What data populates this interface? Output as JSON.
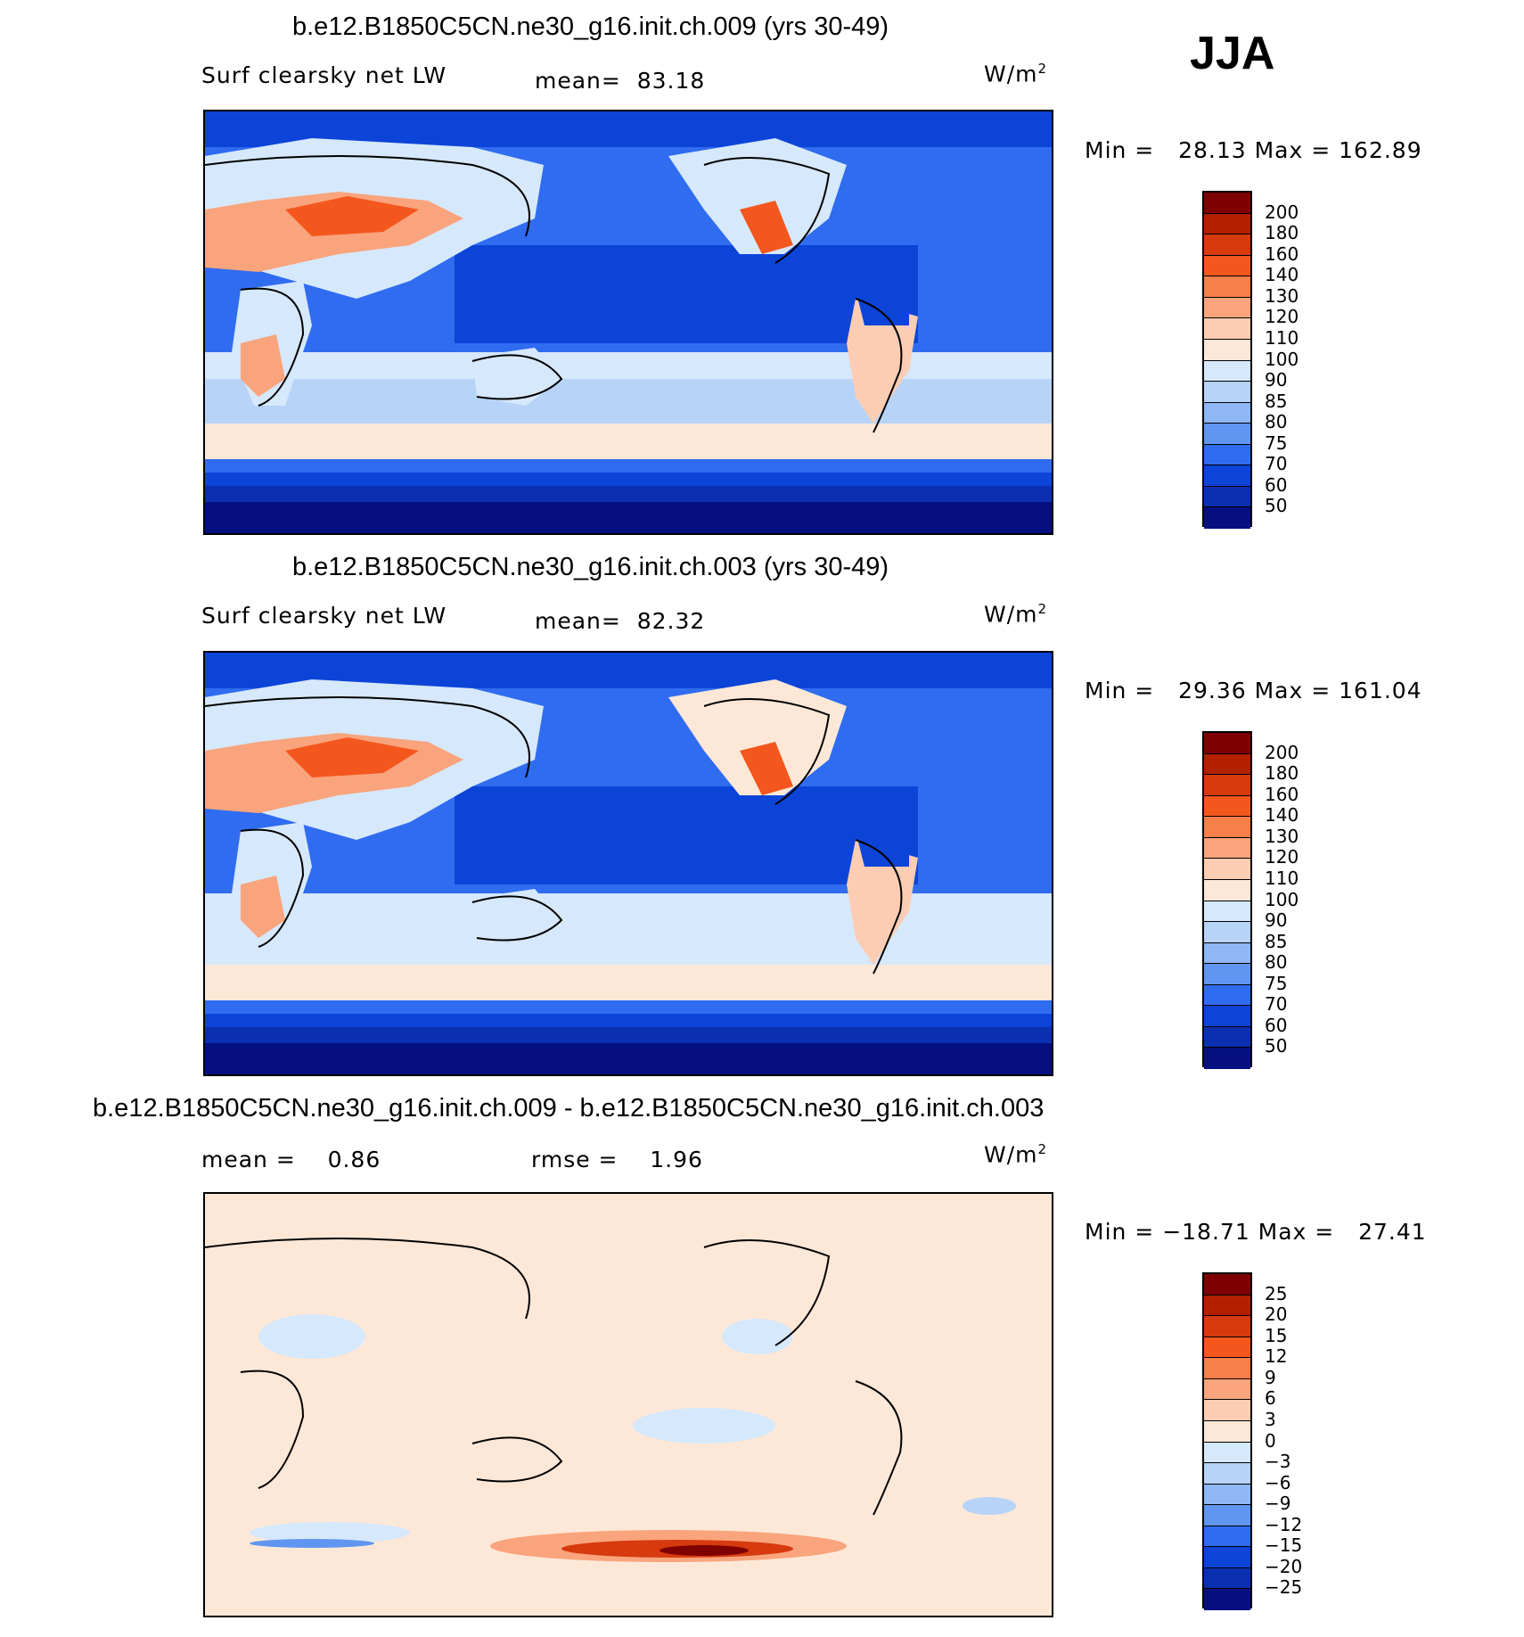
{
  "season": "JJA",
  "panels": [
    {
      "title": "b.e12.B1850C5CN.ne30_g16.init.ch.009 (yrs 30-49)",
      "left_label": "Surf clearsky net LW",
      "mid_label": "mean=  83.18",
      "units": "W/m",
      "units_sup": "2",
      "minmax": "Min =   28.13 Max = 162.89",
      "palette": "abs"
    },
    {
      "title": "b.e12.B1850C5CN.ne30_g16.init.ch.003 (yrs 30-49)",
      "left_label": "Surf clearsky net LW",
      "mid_label": "mean=  82.32",
      "units": "W/m",
      "units_sup": "2",
      "minmax": "Min =   29.36 Max = 161.04",
      "palette": "abs"
    },
    {
      "title": "b.e12.B1850C5CN.ne30_g16.init.ch.009 - b.e12.B1850C5CN.ne30_g16.init.ch.003",
      "left_label": "mean =    0.86",
      "mid_label": "rmse =    1.96",
      "units": "W/m",
      "units_sup": "2",
      "minmax": "Min = −18.71 Max =   27.41",
      "palette": "diff"
    }
  ],
  "colorbars": {
    "abs": {
      "levels": [
        "200",
        "180",
        "160",
        "140",
        "130",
        "120",
        "110",
        "100",
        "90",
        "85",
        "80",
        "75",
        "70",
        "60",
        "50"
      ],
      "colors": [
        "#7f0000",
        "#b22000",
        "#d63a0e",
        "#f4571e",
        "#f77f49",
        "#f9a47c",
        "#fccdb3",
        "#fde8d8",
        "#d6e8fb",
        "#b7d3f8",
        "#8fb6f5",
        "#6095f2",
        "#2f6cf0",
        "#0c44d8",
        "#0a2fb0",
        "#060f80"
      ]
    },
    "diff": {
      "levels": [
        "25",
        "20",
        "15",
        "12",
        "9",
        "6",
        "3",
        "0",
        "−3",
        "−6",
        "−9",
        "−12",
        "−15",
        "−20",
        "−25"
      ],
      "colors": [
        "#7f0000",
        "#b22000",
        "#d63a0e",
        "#f4571e",
        "#f77f49",
        "#f9a47c",
        "#fccdb3",
        "#fde8d8",
        "#d6e8fb",
        "#b7d3f8",
        "#8fb6f5",
        "#6095f2",
        "#2f6cf0",
        "#0c44d8",
        "#0a2fb0",
        "#060f80"
      ]
    }
  }
}
